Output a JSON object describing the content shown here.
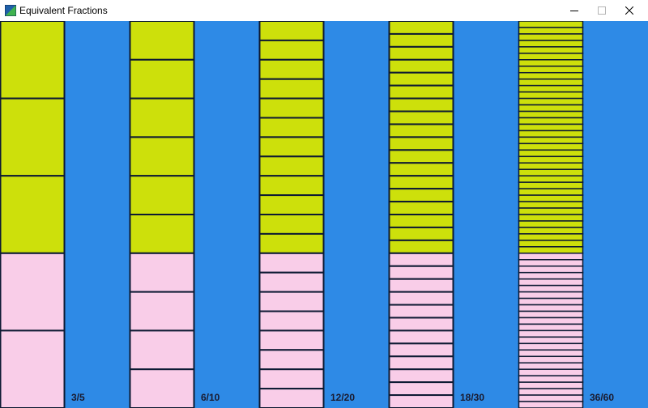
{
  "window": {
    "title": "Equivalent Fractions"
  },
  "colors": {
    "background": "#2e8ae6",
    "shaded": "#cde00b",
    "unshaded": "#f9cde8",
    "divider": "#0d1a33"
  },
  "bars": [
    {
      "numerator": 3,
      "denominator": 5,
      "label": "3/5"
    },
    {
      "numerator": 6,
      "denominator": 10,
      "label": "6/10"
    },
    {
      "numerator": 12,
      "denominator": 20,
      "label": "12/20"
    },
    {
      "numerator": 18,
      "denominator": 30,
      "label": "18/30"
    },
    {
      "numerator": 36,
      "denominator": 60,
      "label": "36/60"
    }
  ]
}
